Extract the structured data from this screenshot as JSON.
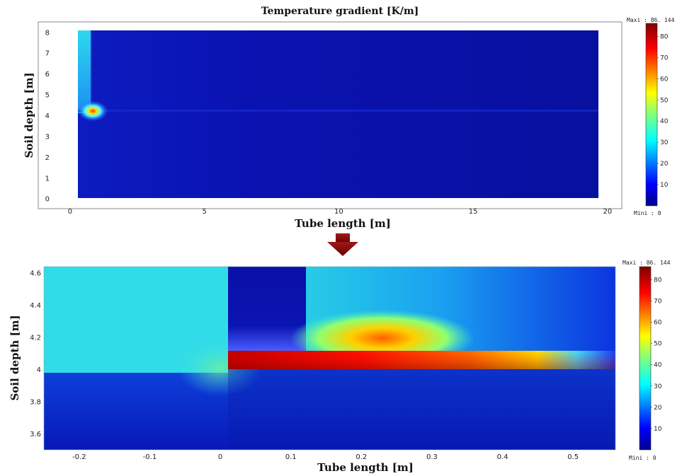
{
  "chart_data": [
    {
      "type": "heatmap",
      "title": "Temperature gradient [K/m]",
      "xlabel": "Tube length [m]",
      "ylabel": "Soil depth [m]",
      "xlim": [
        -1,
        20.4
      ],
      "ylim": [
        -0.3,
        8.3
      ],
      "x_ticks": [
        0,
        5,
        10,
        15,
        20
      ],
      "x_tick_labels": [
        "0",
        "5",
        "10",
        "15",
        "20"
      ],
      "y_ticks": [
        0,
        1,
        2,
        3,
        4,
        5,
        6,
        7,
        8
      ],
      "y_tick_labels": [
        "0",
        "1",
        "2",
        "3",
        "4",
        "5",
        "6",
        "7",
        "8"
      ],
      "colorscale": "jet",
      "colorbar_range": [
        0,
        86.144
      ],
      "colorbar_ticks": [
        10,
        20,
        30,
        40,
        50,
        60,
        70,
        80
      ],
      "colorbar_max_label": "Maxi : 86. 144",
      "colorbar_min_label": "Mini : 0",
      "hotspot": {
        "x": 0.1,
        "y": 4.2,
        "value": 86
      }
    },
    {
      "type": "heatmap",
      "title": "",
      "xlabel": "Tube length [m]",
      "ylabel": "Soil depth [m]",
      "xlim": [
        -0.25,
        0.56
      ],
      "ylim": [
        3.5,
        4.64
      ],
      "x_ticks": [
        -0.2,
        -0.1,
        0,
        0.1,
        0.2,
        0.3,
        0.4,
        0.5
      ],
      "x_tick_labels": [
        "-0.2",
        "-0.1",
        "0",
        "0.1",
        "0.2",
        "0.3",
        "0.4",
        "0.5"
      ],
      "y_ticks": [
        3.6,
        3.8,
        4.0,
        4.2,
        4.4,
        4.6
      ],
      "y_tick_labels": [
        "3.6",
        "3.8",
        "4",
        "4.2",
        "4.4",
        "4.6"
      ],
      "colorscale": "jet",
      "colorbar_range": [
        0,
        86.144
      ],
      "colorbar_ticks": [
        10,
        20,
        30,
        40,
        50,
        60,
        70,
        80
      ],
      "colorbar_max_label": "Maxi : 86. 144",
      "colorbar_min_label": "Mini : 0",
      "hotspot": {
        "x": 0.22,
        "y": 4.12,
        "value": 86
      }
    }
  ]
}
